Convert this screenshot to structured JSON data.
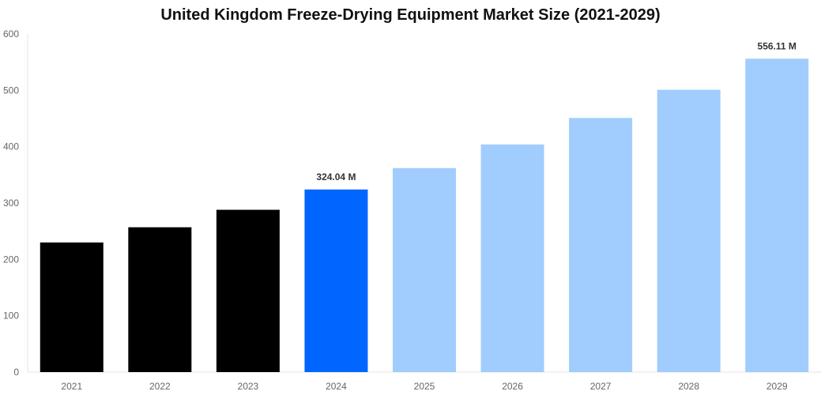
{
  "chart_data": {
    "type": "bar",
    "title": "United Kingdom Freeze-Drying Equipment Market Size (2021-2029)",
    "xlabel": "",
    "ylabel": "",
    "categories": [
      "2021",
      "2022",
      "2023",
      "2024",
      "2025",
      "2026",
      "2027",
      "2028",
      "2029"
    ],
    "values": [
      230,
      257,
      288,
      324.04,
      362,
      404,
      451,
      501,
      556.11
    ],
    "data_labels": {
      "3": "324.04 M",
      "8": "556.11 M"
    },
    "bar_colors": [
      "#000000",
      "#000000",
      "#000000",
      "#0066ff",
      "#a0cdfd",
      "#a0cdfd",
      "#a0cdfd",
      "#a0cdfd",
      "#a0cdfd"
    ],
    "ylim": [
      0,
      600
    ],
    "yticks": [
      0,
      100,
      200,
      300,
      400,
      500,
      600
    ],
    "grid": false,
    "legend": "none"
  }
}
